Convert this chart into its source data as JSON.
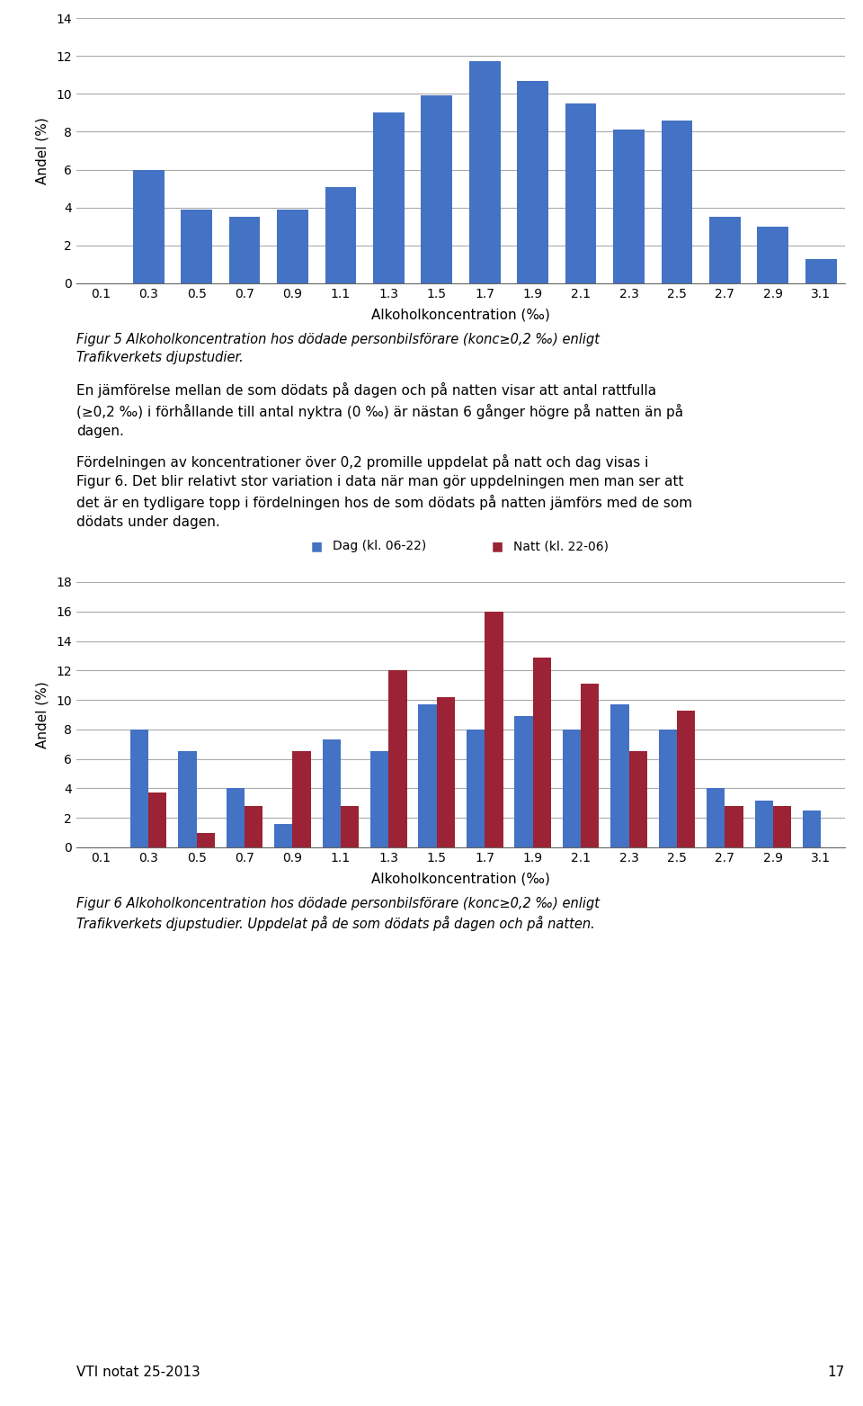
{
  "chart1": {
    "categories": [
      "0.1",
      "0.3",
      "0.5",
      "0.7",
      "0.9",
      "1.1",
      "1.3",
      "1.5",
      "1.7",
      "1.9",
      "2.1",
      "2.3",
      "2.5",
      "2.7",
      "2.9",
      "3.1"
    ],
    "values": [
      0,
      6.0,
      3.9,
      3.5,
      3.9,
      5.1,
      9.0,
      9.9,
      11.7,
      10.7,
      9.5,
      8.1,
      8.6,
      3.5,
      3.0,
      1.3
    ],
    "bar_color": "#4472C4",
    "ylabel": "Andel (%)",
    "xlabel": "Alkoholkoncentration (‰)",
    "ylim": [
      0,
      14
    ],
    "yticks": [
      0,
      2,
      4,
      6,
      8,
      10,
      12,
      14
    ]
  },
  "text_block": {
    "paragraph1_parts": [
      {
        "text": "En jämförelse ",
        "bold": false
      },
      {
        "text": "mellan de som dödats på dagen och på natten",
        "bold": true
      },
      {
        "text": " visar att antal rattfulla\n(≥0,2 ‰) i förhållande till antal nyktra (0 ‰) är nästan 6 gånger högre på natten än på\ndagen.",
        "bold": false
      }
    ],
    "paragraph1": "En jämförelse mellan de som dödats på dagen och på natten visar att antal rattfulla\n(≥0,2 ‰) i förhållande till antal nyktra (0 ‰) är nästan 6 gånger högre på natten än på\ndagen.",
    "paragraph2": "Fördelningen av koncentrationer över 0,2 promille uppdelat på natt och dag visas i\nFigur 6. Det blir relativt stor variation i data när man gör uppdelningen men man ser att\ndet är en tydligare topp i fördelningen hos de som dödats på natten jämförs med de som\ndödats under dagen."
  },
  "fig5_caption": "Figur 5 Alkoholkoncentration hos dödade personbilsförare (konc≥0,2 ‰) enligt\nTrafikverkets djupstudier.",
  "chart2": {
    "categories": [
      "0.1",
      "0.3",
      "0.5",
      "0.7",
      "0.9",
      "1.1",
      "1.3",
      "1.5",
      "1.7",
      "1.9",
      "2.1",
      "2.3",
      "2.5",
      "2.7",
      "2.9",
      "3.1"
    ],
    "dag_values": [
      0,
      8.0,
      6.5,
      4.0,
      1.6,
      7.3,
      6.5,
      9.7,
      8.0,
      8.9,
      8.0,
      9.7,
      8.0,
      4.0,
      3.2,
      2.5
    ],
    "natt_values": [
      0,
      3.7,
      1.0,
      2.8,
      6.5,
      2.8,
      12.0,
      10.2,
      16.0,
      12.9,
      11.1,
      6.5,
      9.3,
      2.8,
      2.8,
      0
    ],
    "dag_color": "#4472C4",
    "natt_color": "#9B2335",
    "ylabel": "Andel (%)",
    "xlabel": "Alkoholkoncentration (‰)",
    "ylim": [
      0,
      18
    ],
    "yticks": [
      0,
      2,
      4,
      6,
      8,
      10,
      12,
      14,
      16,
      18
    ],
    "legend_dag": "Dag (kl. 06-22)",
    "legend_natt": "Natt (kl. 22-06)"
  },
  "fig6_caption": "Figur 6 Alkoholkoncentration hos dödade personbilsförare (konc≥0,2 ‰) enligt\nTrafikverkets djupstudier. Uppdelat på de som dödats på dagen och på natten.",
  "footer": "VTI notat 25-2013",
  "footer_page": "17",
  "background_color": "#FFFFFF",
  "text_color": "#000000",
  "font_size_body": 11,
  "font_size_caption": 10.5,
  "font_size_tick": 10,
  "font_size_axis": 11
}
